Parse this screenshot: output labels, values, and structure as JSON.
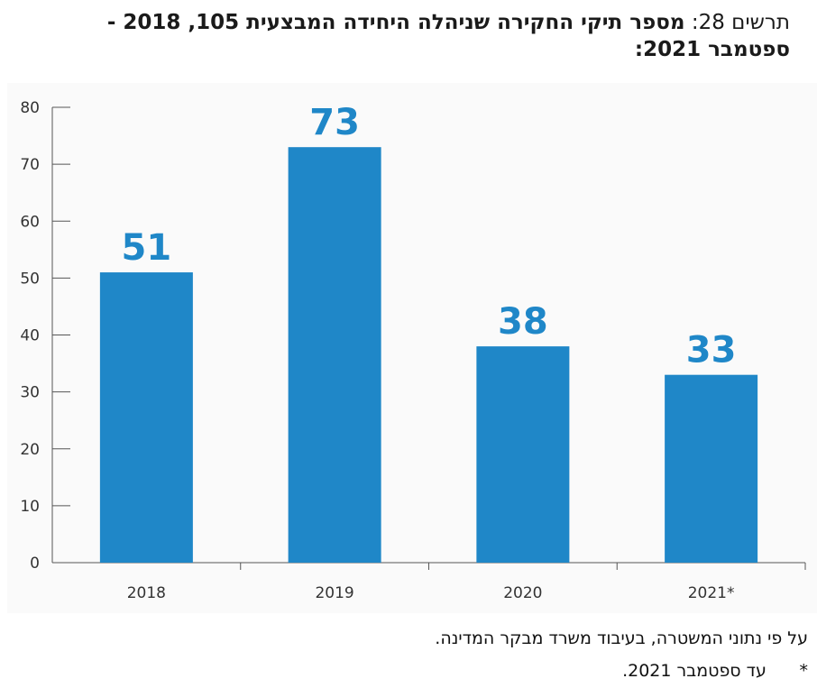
{
  "title": {
    "label": "תרשים 28:",
    "text": "מספר תיקי החקירה שניהלה היחידה המבצעית 105, 2018 - ספטמבר 2021:"
  },
  "chart_data": {
    "type": "bar",
    "categories": [
      "2018",
      "2019",
      "2020",
      "2021*"
    ],
    "values": [
      51,
      73,
      38,
      33
    ],
    "data_labels": [
      "51",
      "73",
      "38",
      "33"
    ],
    "ylim": [
      0,
      80
    ],
    "yticks": [
      "0",
      "10",
      "20",
      "30",
      "40",
      "50",
      "60",
      "70",
      "80"
    ],
    "bar_color": "#1f87c8",
    "grid": false
  },
  "source": "על פי נתוני המשטרה, בעיבוד משרד מבקר המדינה.",
  "footnote": {
    "marker": "*",
    "text": "עד ספטמבר 2021."
  }
}
